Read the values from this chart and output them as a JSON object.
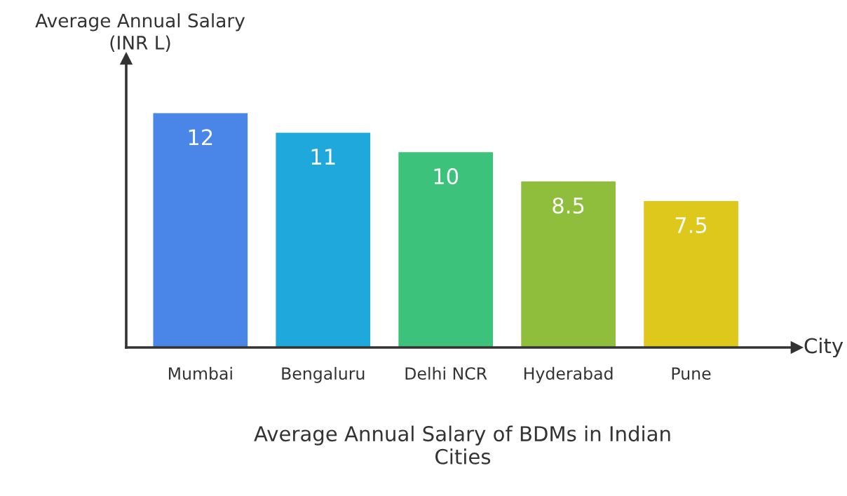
{
  "chart_data": {
    "type": "bar",
    "title": "Average Annual Salary of BDMs in Indian\nCities",
    "xlabel": "City",
    "ylabel": "Average Annual Salary\n(INR L)",
    "categories": [
      "Mumbai",
      "Bengaluru",
      "Delhi NCR",
      "Hyderabad",
      "Pune"
    ],
    "values": [
      12,
      11,
      10,
      8.5,
      7.5
    ],
    "colors": [
      "#4a86e8",
      "#1fa8dc",
      "#3cc27a",
      "#8fbe3c",
      "#dfc81c"
    ],
    "data_labels": true,
    "grid": false,
    "legend": false,
    "tick_labels": "x"
  }
}
